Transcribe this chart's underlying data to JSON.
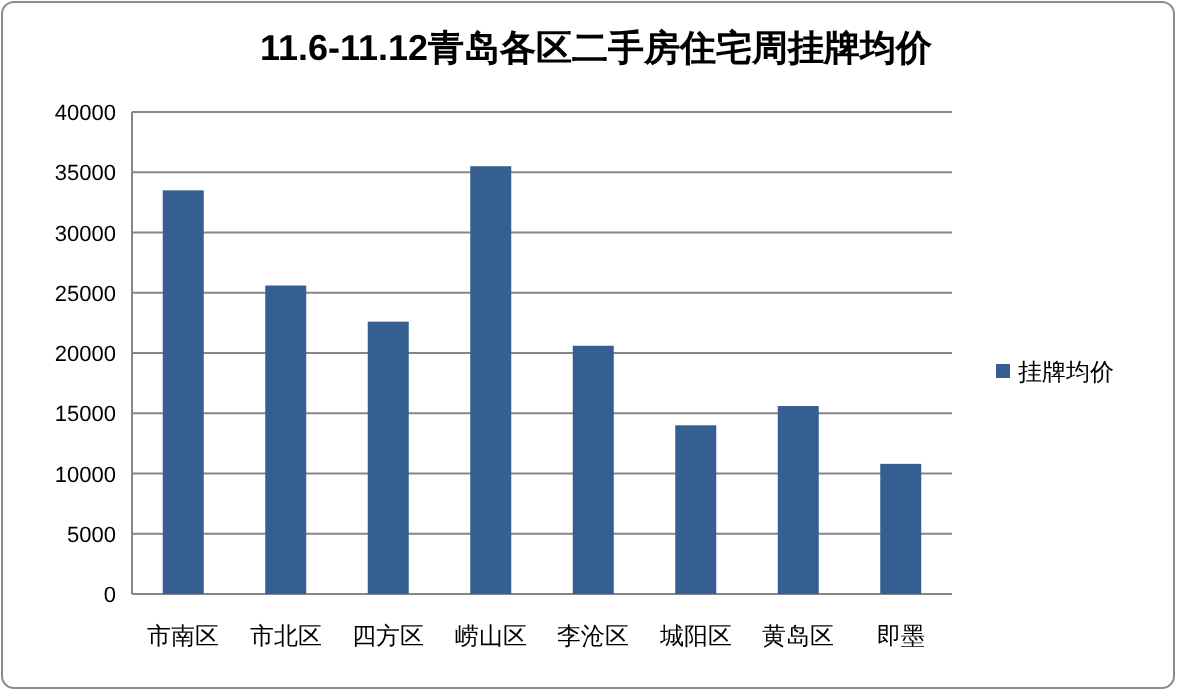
{
  "chart_data": {
    "type": "bar",
    "title": "11.6-11.12青岛各区二手房住宅周挂牌均价",
    "categories": [
      "市南区",
      "市北区",
      "四方区",
      "崂山区",
      "李沧区",
      "城阳区",
      "黄岛区",
      "即墨"
    ],
    "series": [
      {
        "name": "挂牌均价",
        "color": "#365f91",
        "values": [
          33500,
          25600,
          22600,
          35500,
          20600,
          14000,
          15600,
          10800
        ]
      }
    ],
    "ylim": [
      0,
      40000
    ],
    "yticks": [
      0,
      5000,
      10000,
      15000,
      20000,
      25000,
      30000,
      35000,
      40000
    ],
    "grid": "y",
    "legend": "right"
  }
}
